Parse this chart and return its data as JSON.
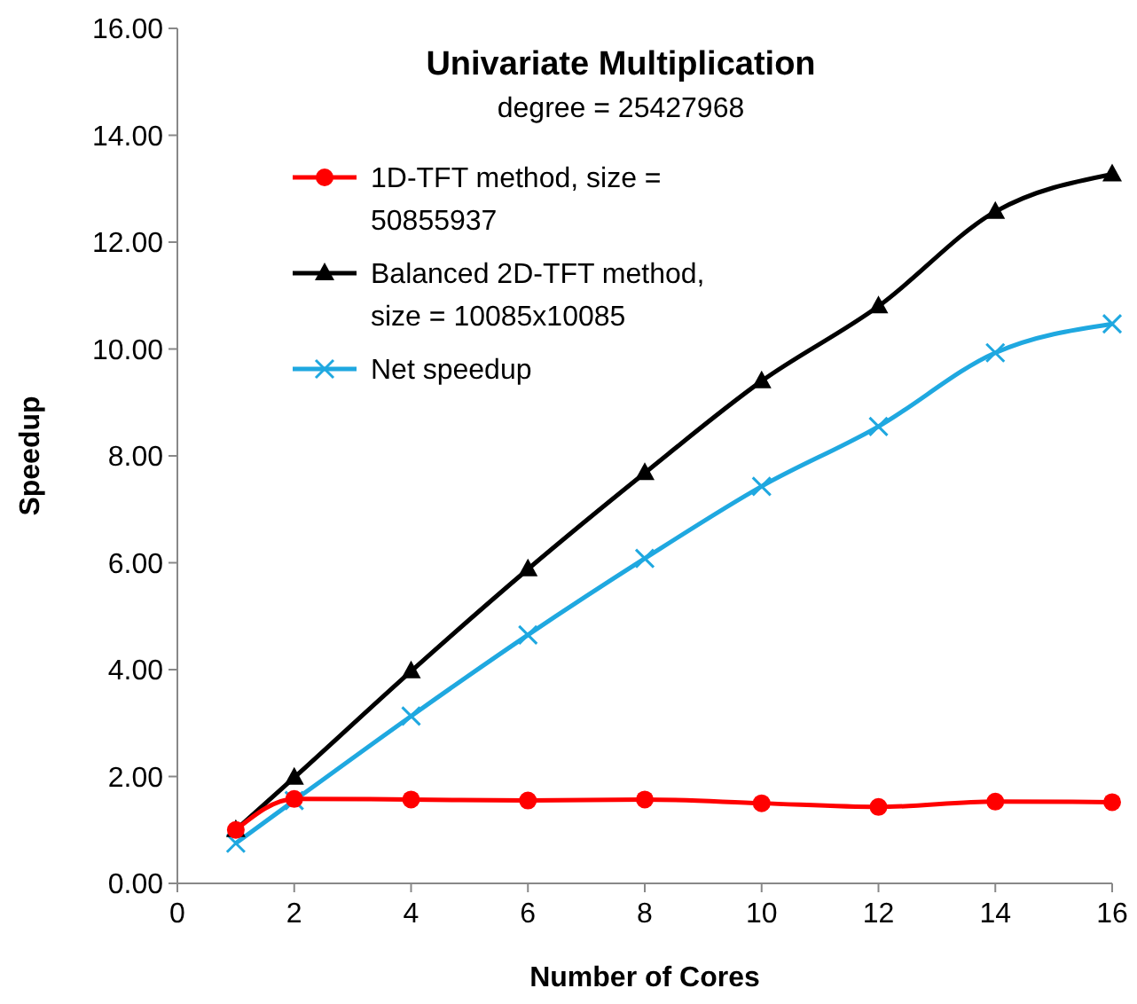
{
  "chart_data": {
    "type": "line",
    "title": "Univariate Multiplication",
    "subtitle": "degree = 25427968",
    "xlabel": "Number of Cores",
    "ylabel": "Speedup",
    "x": [
      1,
      2,
      4,
      6,
      8,
      10,
      12,
      14,
      16
    ],
    "series": [
      {
        "name": "1D-TFT method, size = 50855937",
        "color": "#ff0000",
        "marker": "circle",
        "values": [
          1.0,
          1.58,
          1.57,
          1.55,
          1.57,
          1.5,
          1.43,
          1.53,
          1.52
        ]
      },
      {
        "name": "Balanced 2D-TFT method, size = 10085x10085",
        "color": "#000000",
        "marker": "triangle",
        "values": [
          1.0,
          1.98,
          3.97,
          5.88,
          7.68,
          9.4,
          10.8,
          12.57,
          13.27
        ]
      },
      {
        "name": "Net speedup",
        "color": "#1fa8e0",
        "marker": "cross",
        "values": [
          0.75,
          1.55,
          3.13,
          4.65,
          6.08,
          7.43,
          8.55,
          9.93,
          10.47
        ]
      }
    ],
    "xlim": [
      0,
      16
    ],
    "xticks": [
      0,
      2,
      4,
      6,
      8,
      10,
      12,
      14,
      16
    ],
    "ylim": [
      0,
      16
    ],
    "yticks": [
      {
        "value": 0,
        "label": "0.00"
      },
      {
        "value": 2,
        "label": "2.00"
      },
      {
        "value": 4,
        "label": "4.00"
      },
      {
        "value": 6,
        "label": "6.00"
      },
      {
        "value": 8,
        "label": "8.00"
      },
      {
        "value": 10,
        "label": "10.00"
      },
      {
        "value": 12,
        "label": "12.00"
      },
      {
        "value": 14,
        "label": "14.00"
      },
      {
        "value": 16,
        "label": "16.00"
      }
    ],
    "grid": false,
    "legend": "top left",
    "line_style": "solid"
  }
}
